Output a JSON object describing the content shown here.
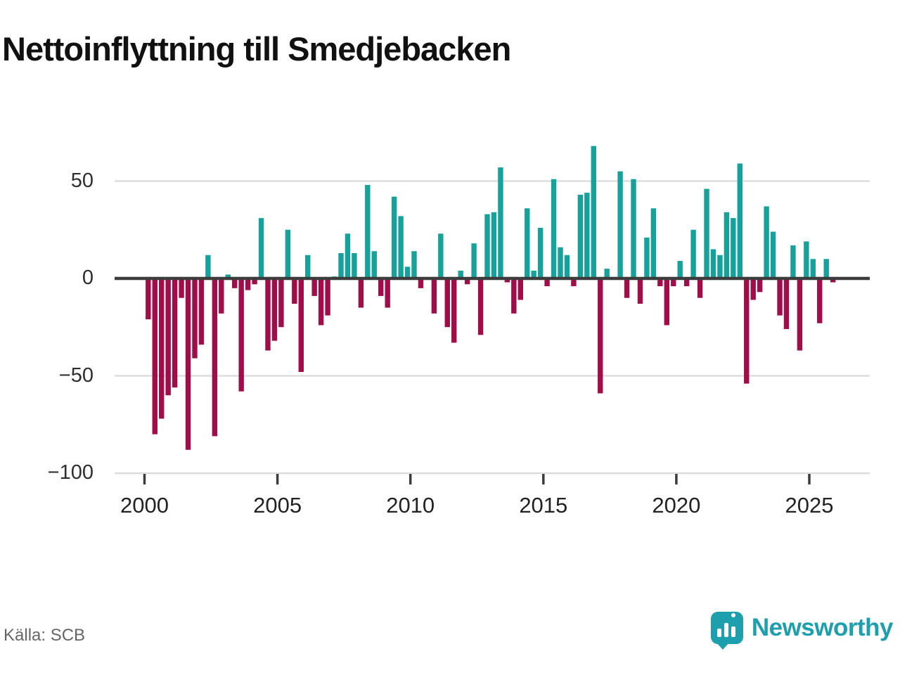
{
  "title": "Nettoinflyttning till Smedjebacken",
  "source": "Källa: SCB",
  "logo": {
    "brand": "Newsworthy",
    "icon": "bar-chart-pin-icon"
  },
  "colors": {
    "positive": "#16a29b",
    "negative": "#a00e49",
    "zero_axis": "#3c3c3c",
    "grid": "#dddddd",
    "tick": "#3c3c3c",
    "brand": "#1d9fae"
  },
  "chart_data": {
    "type": "bar",
    "title": "Nettoinflyttning till Smedjebacken",
    "xlabel": "",
    "ylabel": "",
    "start_quarter": "2000 Q1",
    "frequency": "quarterly",
    "ylim": [
      -100,
      70
    ],
    "grid": true,
    "y_ticks": [
      50,
      0,
      -50,
      -100
    ],
    "y_tick_labels": [
      "50",
      "0",
      "−50",
      "−100"
    ],
    "x_tick_years": [
      2000,
      2005,
      2010,
      2015,
      2020,
      2025
    ],
    "x_tick_labels": [
      "2000",
      "2005",
      "2010",
      "2015",
      "2020",
      "2025"
    ],
    "values": [
      -21,
      -80,
      -72,
      -60,
      -56,
      -10,
      -88,
      -41,
      -34,
      12,
      -81,
      -18,
      2,
      -5,
      -58,
      -6,
      -3,
      31,
      -37,
      -32,
      -25,
      25,
      -13,
      -48,
      12,
      -9,
      -24,
      -19,
      1,
      13,
      23,
      13,
      -15,
      48,
      14,
      -9,
      -15,
      42,
      32,
      6,
      14,
      -5,
      0,
      -18,
      23,
      -25,
      -33,
      4,
      -3,
      18,
      -29,
      33,
      34,
      57,
      -2,
      -18,
      -11,
      36,
      4,
      26,
      -4,
      51,
      16,
      12,
      -4,
      43,
      44,
      68,
      -59,
      5,
      0,
      55,
      -10,
      51,
      -13,
      21,
      36,
      -4,
      -24,
      -4,
      9,
      -4,
      25,
      -10,
      46,
      15,
      12,
      34,
      31,
      59,
      -54,
      -11,
      -7,
      37,
      24,
      -19,
      -26,
      17,
      -37,
      19,
      10,
      -23,
      10,
      -2
    ]
  }
}
